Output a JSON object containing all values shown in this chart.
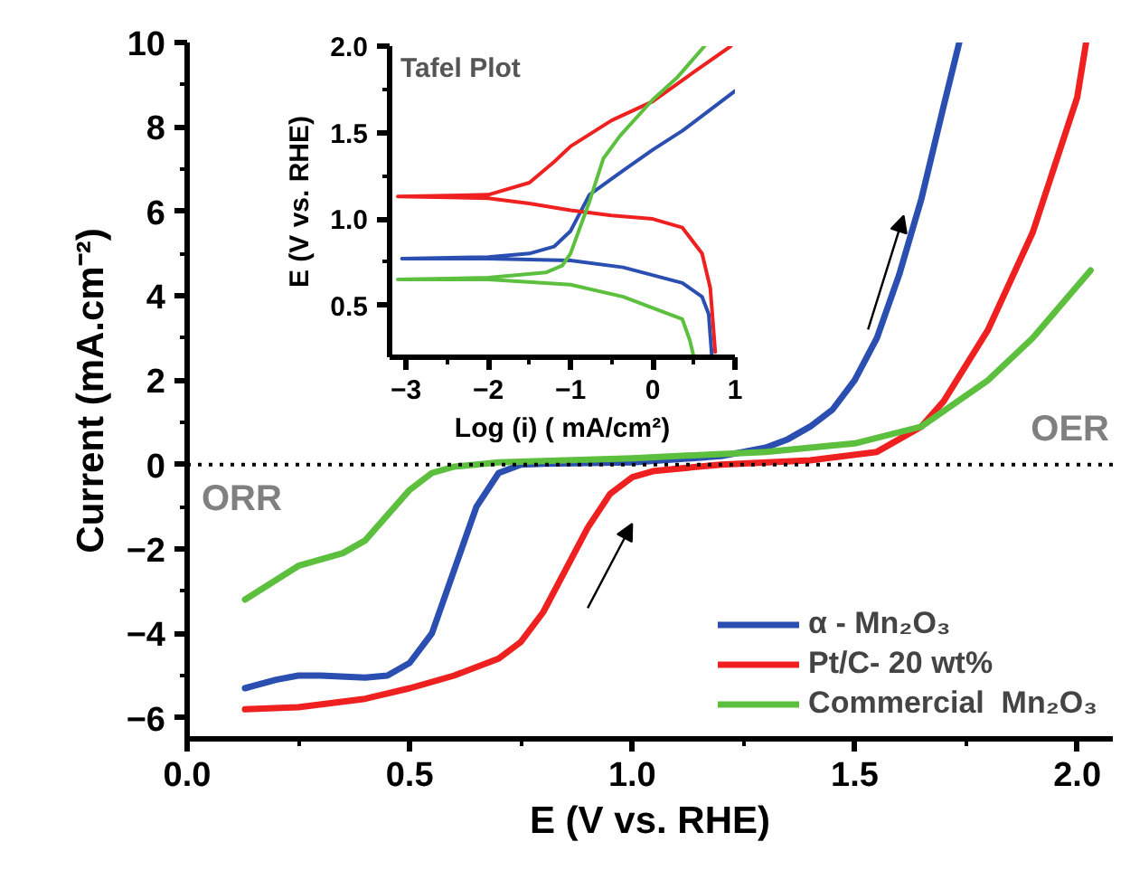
{
  "chart_data": [
    {
      "type": "line",
      "xlabel": "E (V vs. RHE)",
      "ylabel": "Current (mA.cm⁻²)",
      "xlim": [
        0,
        2.08
      ],
      "ylim": [
        -6.5,
        10
      ],
      "xticks": [
        {
          "value": 0,
          "label": "0.0"
        },
        {
          "value": 0.5,
          "label": "0.5"
        },
        {
          "value": 1,
          "label": "1.0"
        },
        {
          "value": 1.5,
          "label": "1.5"
        },
        {
          "value": 2,
          "label": "2.0"
        }
      ],
      "yticks": [
        -6,
        -4,
        -2,
        0,
        2,
        4,
        6,
        8,
        10
      ],
      "grid": false,
      "legend": "bottom right",
      "line_style": "solid",
      "marker": "none",
      "ref_lines": [
        {
          "axis": "y",
          "value": 0,
          "color": "#000000",
          "line_style": "dotted"
        }
      ],
      "annotations": [
        "ORR",
        "OER"
      ],
      "series": [
        {
          "name": "α - Mn₂O₃",
          "color": "#2a4fb0",
          "x": [
            0.13,
            0.2,
            0.25,
            0.3,
            0.4,
            0.45,
            0.5,
            0.55,
            0.6,
            0.65,
            0.7,
            0.75,
            0.8,
            1.0,
            1.2,
            1.3,
            1.35,
            1.4,
            1.45,
            1.5,
            1.55,
            1.6,
            1.65,
            1.7,
            1.735
          ],
          "values": [
            -5.3,
            -5.1,
            -5.0,
            -5.0,
            -5.05,
            -5.0,
            -4.7,
            -4.0,
            -2.5,
            -1.0,
            -0.2,
            0,
            0.02,
            0.05,
            0.2,
            0.4,
            0.6,
            0.9,
            1.3,
            2.0,
            3.0,
            4.5,
            6.3,
            8.5,
            10
          ]
        },
        {
          "name": "Pt/C- 20 wt%",
          "color": "#ee2020",
          "x": [
            0.13,
            0.25,
            0.4,
            0.5,
            0.6,
            0.7,
            0.75,
            0.8,
            0.85,
            0.9,
            0.95,
            1.0,
            1.05,
            1.2,
            1.4,
            1.55,
            1.65,
            1.7,
            1.8,
            1.9,
            2.0,
            2.02
          ],
          "values": [
            -5.8,
            -5.75,
            -5.55,
            -5.3,
            -5.0,
            -4.6,
            -4.2,
            -3.5,
            -2.5,
            -1.5,
            -0.7,
            -0.3,
            -0.15,
            0,
            0.1,
            0.3,
            0.9,
            1.5,
            3.2,
            5.5,
            8.7,
            10
          ]
        },
        {
          "name": "Commercial  Mn₂O₃",
          "color": "#5cbf3e",
          "x": [
            0.13,
            0.25,
            0.35,
            0.4,
            0.45,
            0.5,
            0.55,
            0.6,
            0.7,
            1.0,
            1.3,
            1.5,
            1.65,
            1.8,
            1.9,
            2.03
          ],
          "values": [
            -3.2,
            -2.4,
            -2.1,
            -1.8,
            -1.2,
            -0.6,
            -0.2,
            -0.05,
            0.05,
            0.15,
            0.3,
            0.5,
            0.9,
            2.0,
            3.0,
            4.6
          ]
        }
      ]
    },
    {
      "type": "line",
      "title": "Tafel Plot",
      "xlabel": "Log (i) ( mA/cm²)",
      "ylabel": "E (V vs. RHE)",
      "xlim": [
        -3.2,
        1
      ],
      "ylim": [
        0.2,
        2.0
      ],
      "xticks": [
        -3,
        -2,
        -1,
        0,
        1
      ],
      "yticks": [
        {
          "value": 0.5,
          "label": "0.5"
        },
        {
          "value": 1,
          "label": "1.0"
        },
        {
          "value": 1.5,
          "label": "1.5"
        },
        {
          "value": 2,
          "label": "2.0"
        }
      ],
      "grid": false,
      "line_style": "solid",
      "marker": "none",
      "series": [
        {
          "color": "#2a4fb0",
          "x": [
            0.72,
            0.68,
            0.6,
            0.36,
            -0.36,
            -1,
            -2,
            -3.05,
            -2,
            -1.5,
            -1.2,
            -1,
            -0.77,
            -0.36,
            0,
            0.36,
            1.0
          ],
          "values": [
            0.2,
            0.45,
            0.55,
            0.63,
            0.72,
            0.76,
            0.77,
            0.77,
            0.78,
            0.8,
            0.84,
            0.93,
            1.14,
            1.28,
            1.4,
            1.51,
            1.74
          ]
        },
        {
          "color": "#ee2020",
          "x": [
            0.76,
            0.7,
            0.6,
            0.36,
            0,
            -0.5,
            -1,
            -1.5,
            -2,
            -3.1,
            -2,
            -1.5,
            -1.2,
            -1,
            -0.5,
            0,
            0.5,
            0.95
          ],
          "values": [
            0.23,
            0.6,
            0.8,
            0.95,
            1.0,
            1.02,
            1.05,
            1.09,
            1.12,
            1.13,
            1.14,
            1.21,
            1.33,
            1.42,
            1.57,
            1.68,
            1.85,
            2.0
          ]
        },
        {
          "color": "#5cbf3e",
          "x": [
            0.5,
            0.45,
            0.36,
            -0.36,
            -1,
            -2,
            -3.1,
            -2,
            -1.3,
            -1.1,
            -1,
            -0.77,
            -0.6,
            -0.4,
            0,
            0.3,
            0.63
          ],
          "values": [
            0.2,
            0.3,
            0.42,
            0.55,
            0.62,
            0.65,
            0.65,
            0.66,
            0.69,
            0.73,
            0.8,
            1.1,
            1.35,
            1.48,
            1.69,
            1.82,
            2.0
          ]
        }
      ]
    }
  ]
}
